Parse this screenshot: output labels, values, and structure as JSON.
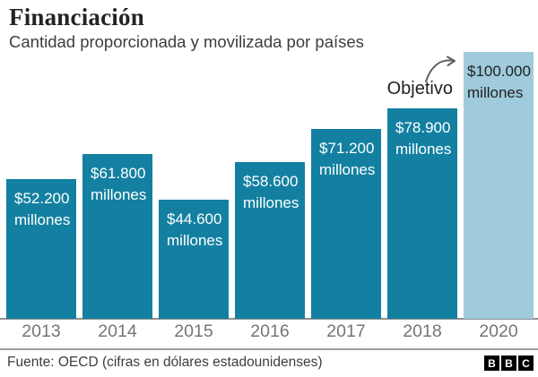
{
  "chart_data": {
    "type": "bar",
    "title": "Financiación",
    "subtitle": "Cantidad proporcionada y movilizada por países",
    "categories": [
      "2013",
      "2014",
      "2015",
      "2016",
      "2017",
      "2018",
      "2020"
    ],
    "values": [
      52200,
      61800,
      44600,
      58600,
      71200,
      78900,
      100000
    ],
    "bar_labels": [
      "$52.200",
      "$61.800",
      "$44.600",
      "$58.600",
      "$71.200",
      "$78.900",
      "$100.000"
    ],
    "unit_label": "millones",
    "ylim": [
      0,
      100000
    ],
    "annotation": "Objetivo",
    "highlight_category": "2020",
    "legend": "none",
    "grid": false,
    "colors": {
      "bar": "#1380a1",
      "highlight_bar": "#9fcbdc",
      "bar_label": "#ffffff",
      "highlight_bar_label": "#222222"
    }
  },
  "footer": {
    "source": "Fuente: OECD (cifras en dólares estadounidenses)",
    "logo_letters": [
      "B",
      "B",
      "C"
    ]
  }
}
